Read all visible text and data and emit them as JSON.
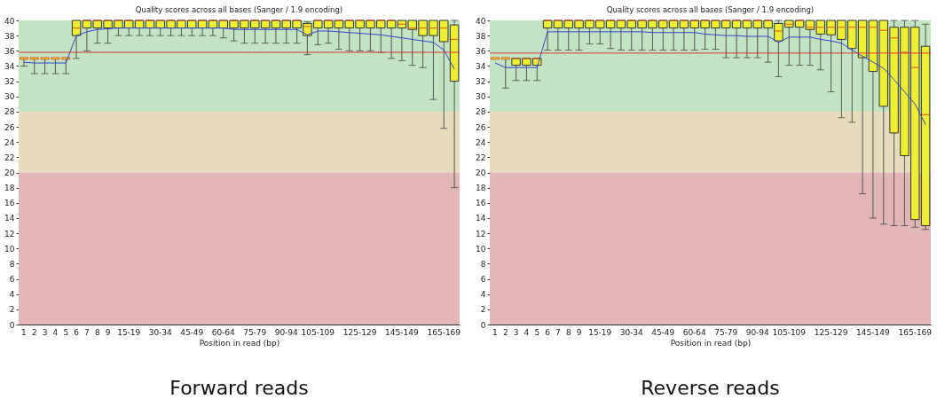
{
  "chart_data": [
    {
      "type": "box",
      "title": "Quality scores across all bases (Sanger / 1.9 encoding)",
      "xlabel": "Position in read (bp)",
      "categories": [
        "1",
        "2",
        "3",
        "4",
        "5",
        "6",
        "7",
        "8",
        "9",
        null,
        "15-19",
        null,
        null,
        "30-34",
        null,
        null,
        "45-49",
        null,
        null,
        "60-64",
        null,
        null,
        "75-79",
        null,
        null,
        "90-94",
        null,
        null,
        "105-109",
        null,
        null,
        null,
        "125-129",
        null,
        null,
        null,
        "145-149",
        null,
        null,
        null,
        "165-169",
        null
      ],
      "ylim": [
        0,
        40
      ],
      "yticks": [
        0,
        2,
        4,
        6,
        8,
        10,
        12,
        14,
        16,
        18,
        20,
        22,
        24,
        26,
        28,
        30,
        32,
        34,
        36,
        38,
        40
      ],
      "bands": [
        {
          "axis": "y",
          "from": 28,
          "to": 40,
          "color": "#c2e4c2"
        },
        {
          "axis": "y",
          "from": 20,
          "to": 28,
          "color": "#e8dbbb"
        },
        {
          "axis": "y",
          "from": 0,
          "to": 20,
          "color": "#e2b6b6"
        }
      ],
      "ref_lines": [
        {
          "axis": "y",
          "value": 35.8,
          "color": "#dd3333"
        }
      ],
      "series": [
        {
          "type": "box",
          "color": "#eeee33",
          "boxes": [
            {
              "low": 34,
              "q1": 35,
              "median": 35,
              "q3": 35,
              "high": 35
            },
            {
              "low": 33,
              "q1": 35,
              "median": 35,
              "q3": 35,
              "high": 35
            },
            {
              "low": 33,
              "q1": 35,
              "median": 35,
              "q3": 35,
              "high": 35
            },
            {
              "low": 33,
              "q1": 35,
              "median": 35,
              "q3": 35,
              "high": 35
            },
            {
              "low": 33,
              "q1": 35,
              "median": 35,
              "q3": 35,
              "high": 35
            },
            {
              "low": 35,
              "q1": 38,
              "median": 39,
              "q3": 40,
              "high": 40
            },
            {
              "low": 36,
              "q1": 39,
              "median": 40,
              "q3": 40,
              "high": 40
            },
            {
              "low": 37,
              "q1": 39,
              "median": 40,
              "q3": 40,
              "high": 40
            },
            {
              "low": 37,
              "q1": 39,
              "median": 40,
              "q3": 40,
              "high": 40
            },
            {
              "low": 38,
              "q1": 39,
              "median": 40,
              "q3": 40,
              "high": 40
            },
            {
              "low": 38,
              "q1": 39,
              "median": 40,
              "q3": 40,
              "high": 40
            },
            {
              "low": 38,
              "q1": 39,
              "median": 40,
              "q3": 40,
              "high": 40
            },
            {
              "low": 38,
              "q1": 39,
              "median": 40,
              "q3": 40,
              "high": 40
            },
            {
              "low": 38,
              "q1": 39,
              "median": 40,
              "q3": 40,
              "high": 40
            },
            {
              "low": 38,
              "q1": 39,
              "median": 40,
              "q3": 40,
              "high": 40
            },
            {
              "low": 38,
              "q1": 39,
              "median": 40,
              "q3": 40,
              "high": 40
            },
            {
              "low": 38,
              "q1": 39,
              "median": 40,
              "q3": 40,
              "high": 40
            },
            {
              "low": 38,
              "q1": 39,
              "median": 40,
              "q3": 40,
              "high": 40
            },
            {
              "low": 38,
              "q1": 39,
              "median": 40,
              "q3": 40,
              "high": 40
            },
            {
              "low": 37.7,
              "q1": 39,
              "median": 40,
              "q3": 40,
              "high": 40
            },
            {
              "low": 37.3,
              "q1": 39,
              "median": 40,
              "q3": 40,
              "high": 40
            },
            {
              "low": 37,
              "q1": 39,
              "median": 40,
              "q3": 40,
              "high": 40
            },
            {
              "low": 37,
              "q1": 39,
              "median": 40,
              "q3": 40,
              "high": 40
            },
            {
              "low": 37,
              "q1": 39,
              "median": 40,
              "q3": 40,
              "high": 40
            },
            {
              "low": 37,
              "q1": 39,
              "median": 40,
              "q3": 40,
              "high": 40
            },
            {
              "low": 37,
              "q1": 39,
              "median": 40,
              "q3": 40,
              "high": 40
            },
            {
              "low": 37,
              "q1": 39,
              "median": 40,
              "q3": 40,
              "high": 40
            },
            {
              "low": 35.5,
              "q1": 38,
              "median": 39.2,
              "q3": 39.6,
              "high": 39.8
            },
            {
              "low": 36.8,
              "q1": 39,
              "median": 40,
              "q3": 40,
              "high": 40
            },
            {
              "low": 37,
              "q1": 39,
              "median": 40,
              "q3": 40,
              "high": 40
            },
            {
              "low": 36.2,
              "q1": 39,
              "median": 40,
              "q3": 40,
              "high": 40
            },
            {
              "low": 36,
              "q1": 39,
              "median": 40,
              "q3": 40,
              "high": 40
            },
            {
              "low": 36,
              "q1": 39,
              "median": 40,
              "q3": 40,
              "high": 40
            },
            {
              "low": 36,
              "q1": 39,
              "median": 40,
              "q3": 40,
              "high": 40
            },
            {
              "low": 35.8,
              "q1": 39,
              "median": 40,
              "q3": 40,
              "high": 40
            },
            {
              "low": 35,
              "q1": 39,
              "median": 40,
              "q3": 40,
              "high": 40
            },
            {
              "low": 34.7,
              "q1": 39,
              "median": 39.5,
              "q3": 40,
              "high": 40
            },
            {
              "low": 34.1,
              "q1": 38.8,
              "median": 39,
              "q3": 40,
              "high": 40
            },
            {
              "low": 33.8,
              "q1": 38,
              "median": 39,
              "q3": 40,
              "high": 40
            },
            {
              "low": 29.6,
              "q1": 38,
              "median": 39,
              "q3": 40,
              "high": 40
            },
            {
              "low": 25.8,
              "q1": 37.2,
              "median": 39,
              "q3": 40,
              "high": 40
            },
            {
              "low": 18,
              "q1": 32,
              "median": 37.5,
              "q3": 39.4,
              "high": 40
            }
          ]
        },
        {
          "type": "line",
          "color": "#3344cc",
          "values": [
            34.5,
            34.4,
            34.4,
            34.4,
            34.4,
            38,
            38.5,
            38.8,
            38.9,
            39,
            39,
            39,
            39,
            39,
            39,
            39,
            39,
            39,
            39,
            39,
            38.8,
            38.8,
            38.8,
            38.8,
            38.8,
            38.8,
            38.8,
            38.1,
            38.6,
            38.6,
            38.5,
            38.4,
            38.3,
            38.2,
            38.1,
            37.9,
            37.7,
            37.5,
            37.3,
            37.1,
            36.1,
            33.6
          ]
        }
      ],
      "annotations": [
        "Forward reads"
      ]
    },
    {
      "type": "box",
      "title": "Quality scores across all bases (Sanger / 1.9 encoding)",
      "xlabel": "Position in read (bp)",
      "categories": [
        "1",
        "2",
        "3",
        "4",
        "5",
        "6",
        "7",
        "8",
        "9",
        null,
        "15-19",
        null,
        null,
        "30-34",
        null,
        null,
        "45-49",
        null,
        null,
        "60-64",
        null,
        null,
        "75-79",
        null,
        null,
        "90-94",
        null,
        null,
        "105-109",
        null,
        null,
        null,
        "125-129",
        null,
        null,
        null,
        "145-149",
        null,
        null,
        null,
        "165-169",
        null
      ],
      "ylim": [
        0,
        40
      ],
      "yticks": [
        0,
        2,
        4,
        6,
        8,
        10,
        12,
        14,
        16,
        18,
        20,
        22,
        24,
        26,
        28,
        30,
        32,
        34,
        36,
        38,
        40
      ],
      "bands": [
        {
          "axis": "y",
          "from": 28,
          "to": 40,
          "color": "#c2e4c2"
        },
        {
          "axis": "y",
          "from": 20,
          "to": 28,
          "color": "#e8dbbb"
        },
        {
          "axis": "y",
          "from": 0,
          "to": 20,
          "color": "#e2b6b6"
        }
      ],
      "ref_lines": [
        {
          "axis": "y",
          "value": 35.7,
          "color": "#dd3333"
        }
      ],
      "series": [
        {
          "type": "box",
          "color": "#eeee33",
          "boxes": [
            {
              "low": 35,
              "q1": 35,
              "median": 35,
              "q3": 35,
              "high": 35
            },
            {
              "low": 31.1,
              "q1": 35,
              "median": 35,
              "q3": 35,
              "high": 35
            },
            {
              "low": 32.1,
              "q1": 34.1,
              "median": 35,
              "q3": 35,
              "high": 35
            },
            {
              "low": 32.1,
              "q1": 34.1,
              "median": 35,
              "q3": 35,
              "high": 35
            },
            {
              "low": 32.1,
              "q1": 34.1,
              "median": 35,
              "q3": 35,
              "high": 35
            },
            {
              "low": 36.1,
              "q1": 39,
              "median": 40,
              "q3": 40,
              "high": 40
            },
            {
              "low": 36.1,
              "q1": 39,
              "median": 40,
              "q3": 40,
              "high": 40
            },
            {
              "low": 36.1,
              "q1": 39,
              "median": 40,
              "q3": 40,
              "high": 40
            },
            {
              "low": 36.1,
              "q1": 39,
              "median": 40,
              "q3": 40,
              "high": 40
            },
            {
              "low": 36.9,
              "q1": 39,
              "median": 40,
              "q3": 40,
              "high": 40
            },
            {
              "low": 36.9,
              "q1": 39,
              "median": 40,
              "q3": 40,
              "high": 40
            },
            {
              "low": 36.3,
              "q1": 39,
              "median": 40,
              "q3": 40,
              "high": 40
            },
            {
              "low": 36.1,
              "q1": 39,
              "median": 40,
              "q3": 40,
              "high": 40
            },
            {
              "low": 36.1,
              "q1": 39,
              "median": 40,
              "q3": 40,
              "high": 40
            },
            {
              "low": 36.1,
              "q1": 39,
              "median": 40,
              "q3": 40,
              "high": 40
            },
            {
              "low": 36.1,
              "q1": 39,
              "median": 40,
              "q3": 40,
              "high": 40
            },
            {
              "low": 36.1,
              "q1": 39,
              "median": 40,
              "q3": 40,
              "high": 40
            },
            {
              "low": 36.1,
              "q1": 39,
              "median": 40,
              "q3": 40,
              "high": 40
            },
            {
              "low": 36.1,
              "q1": 39,
              "median": 40,
              "q3": 40,
              "high": 40
            },
            {
              "low": 36.1,
              "q1": 39,
              "median": 40,
              "q3": 40,
              "high": 40
            },
            {
              "low": 36.2,
              "q1": 39,
              "median": 40,
              "q3": 40,
              "high": 40
            },
            {
              "low": 36.2,
              "q1": 39,
              "median": 40,
              "q3": 40,
              "high": 40
            },
            {
              "low": 35.1,
              "q1": 39,
              "median": 40,
              "q3": 40,
              "high": 40
            },
            {
              "low": 35.1,
              "q1": 39,
              "median": 40,
              "q3": 40,
              "high": 40
            },
            {
              "low": 35.1,
              "q1": 39,
              "median": 40,
              "q3": 40,
              "high": 40
            },
            {
              "low": 35.1,
              "q1": 39,
              "median": 40,
              "q3": 40,
              "high": 40
            },
            {
              "low": 34.5,
              "q1": 39,
              "median": 40,
              "q3": 40,
              "high": 40
            },
            {
              "low": 32.6,
              "q1": 37.3,
              "median": 38.6,
              "q3": 39.6,
              "high": 40
            },
            {
              "low": 34.1,
              "q1": 39.1,
              "median": 39.5,
              "q3": 40,
              "high": 40
            },
            {
              "low": 34.1,
              "q1": 39.1,
              "median": 40,
              "q3": 40,
              "high": 40
            },
            {
              "low": 34.1,
              "q1": 38.8,
              "median": 39.1,
              "q3": 40,
              "high": 40
            },
            {
              "low": 33.5,
              "q1": 38.2,
              "median": 39.1,
              "q3": 40,
              "high": 40
            },
            {
              "low": 30.6,
              "q1": 38.1,
              "median": 39.1,
              "q3": 40,
              "high": 40
            },
            {
              "low": 27.2,
              "q1": 37.5,
              "median": 39.1,
              "q3": 40,
              "high": 40
            },
            {
              "low": 26.6,
              "q1": 36.3,
              "median": 39.1,
              "q3": 40,
              "high": 40
            },
            {
              "low": 17.2,
              "q1": 35.1,
              "median": 39.1,
              "q3": 40,
              "high": 40
            },
            {
              "low": 14,
              "q1": 33.3,
              "median": 39.1,
              "q3": 40,
              "high": 40
            },
            {
              "low": 13.2,
              "q1": 28.7,
              "median": 38.7,
              "q3": 40,
              "high": 40
            },
            {
              "low": 13,
              "q1": 25.2,
              "median": 37.7,
              "q3": 39.1,
              "high": 40
            },
            {
              "low": 13,
              "q1": 22.2,
              "median": 35.8,
              "q3": 39.1,
              "high": 40
            },
            {
              "low": 12.8,
              "q1": 13.8,
              "median": 33.8,
              "q3": 39.1,
              "high": 40
            },
            {
              "low": 12.5,
              "q1": 13,
              "median": 27.6,
              "q3": 36.6,
              "high": 39.5
            }
          ]
        },
        {
          "type": "line",
          "color": "#3344cc",
          "values": [
            34.4,
            33.8,
            33.8,
            33.8,
            33.8,
            38.5,
            38.5,
            38.5,
            38.5,
            38.5,
            38.5,
            38.5,
            38.5,
            38.5,
            38.5,
            38.4,
            38.4,
            38.4,
            38.4,
            38.4,
            38.2,
            38.1,
            38,
            38,
            37.9,
            37.9,
            37.9,
            37.1,
            37.8,
            37.8,
            37.8,
            37.5,
            37.3,
            37,
            36.1,
            35.3,
            34.5,
            33.7,
            32.2,
            30.6,
            29,
            26.3
          ]
        }
      ],
      "annotations": [
        "Reverse reads"
      ]
    }
  ]
}
